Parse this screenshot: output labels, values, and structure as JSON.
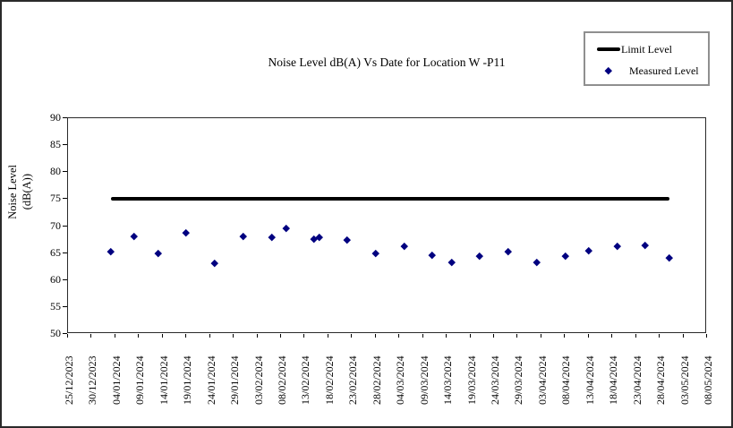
{
  "colors": {
    "background": "#ffffff",
    "text": "#000000",
    "limit_line": "#000000",
    "measured_marker": "#000080",
    "legend_border": "#8f8f8f",
    "frame": "#2a2a2a"
  },
  "legend": {
    "items": [
      {
        "label": "Limit Level",
        "swatch": "thick-line"
      },
      {
        "label": "Measured Level",
        "swatch": "diamond"
      }
    ]
  },
  "chart_data": {
    "type": "scatter",
    "title": "Noise Level dB(A) Vs Date for Location W -P11",
    "xlabel": "",
    "ylabel": "Noise Level (dB(A))",
    "ylabel_lines": [
      "Noise Level",
      "(dB(A))"
    ],
    "ylim": [
      50,
      90
    ],
    "ytick_step": 5,
    "yticks": [
      90,
      85,
      80,
      75,
      70,
      65,
      60,
      55,
      50
    ],
    "grid": false,
    "legend_position": "top-right",
    "x_tick_labels": [
      "25/12/2023",
      "30/12/2023",
      "04/01/2024",
      "09/01/2024",
      "14/01/2024",
      "19/01/2024",
      "24/01/2024",
      "29/01/2024",
      "03/02/2024",
      "08/02/2024",
      "13/02/2024",
      "18/02/2024",
      "23/02/2024",
      "28/02/2024",
      "04/03/2024",
      "09/03/2024",
      "14/03/2024",
      "19/03/2024",
      "24/03/2024",
      "29/03/2024",
      "03/04/2024",
      "08/04/2024",
      "13/04/2024",
      "18/04/2024",
      "23/04/2024",
      "28/04/2024",
      "03/05/2024",
      "08/05/2024"
    ],
    "series": [
      {
        "name": "Limit Level",
        "type": "line",
        "color": "#000000",
        "value": 75,
        "start": "03/01/2024",
        "end": "30/04/2024"
      },
      {
        "name": "Measured Level",
        "type": "scatter",
        "marker": "diamond",
        "color": "#000080",
        "points": [
          {
            "date": "03/01/2024",
            "value": 65.3
          },
          {
            "date": "08/01/2024",
            "value": 68.2
          },
          {
            "date": "13/01/2024",
            "value": 65.0
          },
          {
            "date": "19/01/2024",
            "value": 68.8
          },
          {
            "date": "25/01/2024",
            "value": 63.2
          },
          {
            "date": "31/01/2024",
            "value": 68.1
          },
          {
            "date": "06/02/2024",
            "value": 68.0
          },
          {
            "date": "09/02/2024",
            "value": 69.7
          },
          {
            "date": "15/02/2024",
            "value": 67.7
          },
          {
            "date": "16/02/2024",
            "value": 67.9
          },
          {
            "date": "22/02/2024",
            "value": 67.4
          },
          {
            "date": "28/02/2024",
            "value": 65.0
          },
          {
            "date": "05/03/2024",
            "value": 66.3
          },
          {
            "date": "11/03/2024",
            "value": 64.6
          },
          {
            "date": "15/03/2024",
            "value": 63.3
          },
          {
            "date": "21/03/2024",
            "value": 64.5
          },
          {
            "date": "27/03/2024",
            "value": 65.3
          },
          {
            "date": "02/04/2024",
            "value": 63.4
          },
          {
            "date": "08/04/2024",
            "value": 64.4
          },
          {
            "date": "13/04/2024",
            "value": 65.5
          },
          {
            "date": "19/04/2024",
            "value": 66.3
          },
          {
            "date": "25/04/2024",
            "value": 66.5
          },
          {
            "date": "30/04/2024",
            "value": 64.2
          }
        ]
      }
    ]
  }
}
